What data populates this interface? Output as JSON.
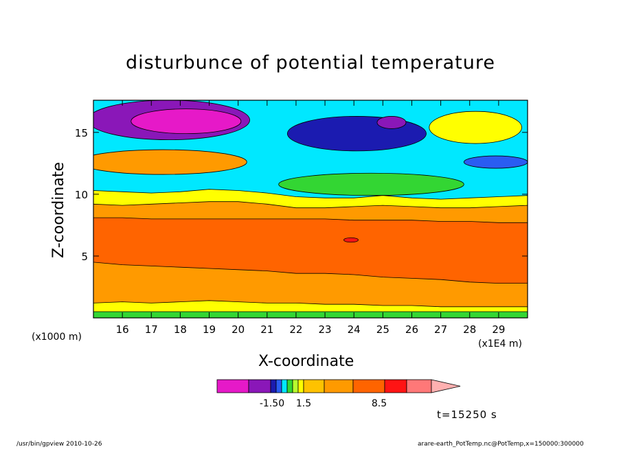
{
  "chart_data": {
    "type": "heatmap",
    "title": "disturbunce of potential temperature",
    "xlabel": "X-coordinate",
    "ylabel": "Z-coordinate",
    "x_unit_label": "(x1000 m)",
    "x_scale_label": "(x1E4 m)",
    "xlim": [
      15.0,
      30.0
    ],
    "ylim": [
      0.0,
      17.6
    ],
    "x_ticks": [
      16,
      17,
      18,
      19,
      20,
      21,
      22,
      23,
      24,
      25,
      26,
      27,
      28,
      29
    ],
    "y_ticks": [
      5,
      10,
      15
    ],
    "colorbar": {
      "colors": [
        "#e619c8",
        "#8a17b8",
        "#1b1bb0",
        "#2a5cf2",
        "#00e8ff",
        "#33d633",
        "#b8ff2e",
        "#ffff00",
        "#ffc200",
        "#ff9a00",
        "#ff6400",
        "#ff1414",
        "#ff7878",
        "#ffb0b0"
      ],
      "labels": [
        "-1.50",
        "1.5",
        "8.5"
      ]
    },
    "layers": [
      {
        "name": "ground",
        "color": "#33d633",
        "top": [
          0.5,
          0.5,
          0.5,
          0.5,
          0.5,
          0.5,
          0.5,
          0.5,
          0.5,
          0.5,
          0.5,
          0.5,
          0.5,
          0.5,
          0.5,
          0.5
        ]
      },
      {
        "name": "lower",
        "color": "#ffff00",
        "top": [
          1.2,
          1.3,
          1.2,
          1.3,
          1.4,
          1.3,
          1.2,
          1.2,
          1.1,
          1.1,
          1.0,
          1.0,
          0.9,
          0.9,
          0.9,
          0.9
        ]
      },
      {
        "name": "middle",
        "color": "#ff9a00",
        "top": [
          4.5,
          4.3,
          4.2,
          4.1,
          4.0,
          3.9,
          3.8,
          3.6,
          3.6,
          3.5,
          3.3,
          3.2,
          3.1,
          2.9,
          2.8,
          2.8
        ]
      },
      {
        "name": "core",
        "color": "#ff6400",
        "top": [
          8.1,
          8.1,
          8.0,
          8.0,
          8.0,
          8.0,
          8.0,
          8.0,
          8.0,
          7.9,
          7.9,
          7.9,
          7.8,
          7.8,
          7.7,
          7.7
        ]
      },
      {
        "name": "transition",
        "color": "#ff9a00",
        "top": [
          9.2,
          9.1,
          9.2,
          9.3,
          9.4,
          9.4,
          9.2,
          8.9,
          8.9,
          9.0,
          9.1,
          9.0,
          8.9,
          8.9,
          9.0,
          9.1
        ]
      },
      {
        "name": "upper-band",
        "color": "#ffff00",
        "top": [
          10.3,
          10.2,
          10.1,
          10.2,
          10.4,
          10.3,
          10.1,
          9.8,
          9.7,
          9.7,
          9.9,
          9.7,
          9.6,
          9.7,
          9.8,
          9.9
        ]
      },
      {
        "name": "upper",
        "color": "#00e8ff",
        "top": [
          17.6,
          17.6,
          17.6,
          17.6,
          17.6,
          17.6,
          17.6,
          17.6,
          17.6,
          17.6,
          17.6,
          17.6,
          17.6,
          17.6,
          17.6,
          17.6
        ]
      }
    ],
    "features": [
      {
        "name": "blob-purple-top-left",
        "color": "#8a17b8",
        "cx": 17.6,
        "cy": 16.0,
        "rx": 2.8,
        "ry": 1.6
      },
      {
        "name": "blob-magenta-top-left",
        "color": "#e619c8",
        "cx": 18.2,
        "cy": 15.9,
        "rx": 1.9,
        "ry": 1.0
      },
      {
        "name": "blob-orange-left",
        "color": "#ff9a00",
        "cx": 17.4,
        "cy": 12.6,
        "rx": 2.9,
        "ry": 1.0
      },
      {
        "name": "blob-green-mid",
        "color": "#33d633",
        "cx": 24.6,
        "cy": 10.8,
        "rx": 3.2,
        "ry": 0.9
      },
      {
        "name": "blob-darkblue-upper",
        "color": "#1b1bb0",
        "cx": 24.1,
        "cy": 14.9,
        "rx": 2.4,
        "ry": 1.4
      },
      {
        "name": "blob-magenta-upper",
        "color": "#8a17b8",
        "cx": 25.3,
        "cy": 15.8,
        "rx": 0.5,
        "ry": 0.5
      },
      {
        "name": "blob-yellow-right",
        "color": "#ffff00",
        "cx": 28.2,
        "cy": 15.4,
        "rx": 1.6,
        "ry": 1.3
      },
      {
        "name": "blob-darkblue-right",
        "color": "#2a5cf2",
        "cx": 28.9,
        "cy": 12.6,
        "rx": 1.1,
        "ry": 0.5
      },
      {
        "name": "blob-red-core",
        "color": "#ff1414",
        "cx": 23.9,
        "cy": 6.3,
        "rx": 0.25,
        "ry": 0.18
      }
    ],
    "time_label": "t=15250 s"
  },
  "footer": {
    "left": "/usr/bin/gpview   2010-10-26",
    "right": "arare-earth_PotTemp.nc@PotTemp,x=150000:300000"
  }
}
